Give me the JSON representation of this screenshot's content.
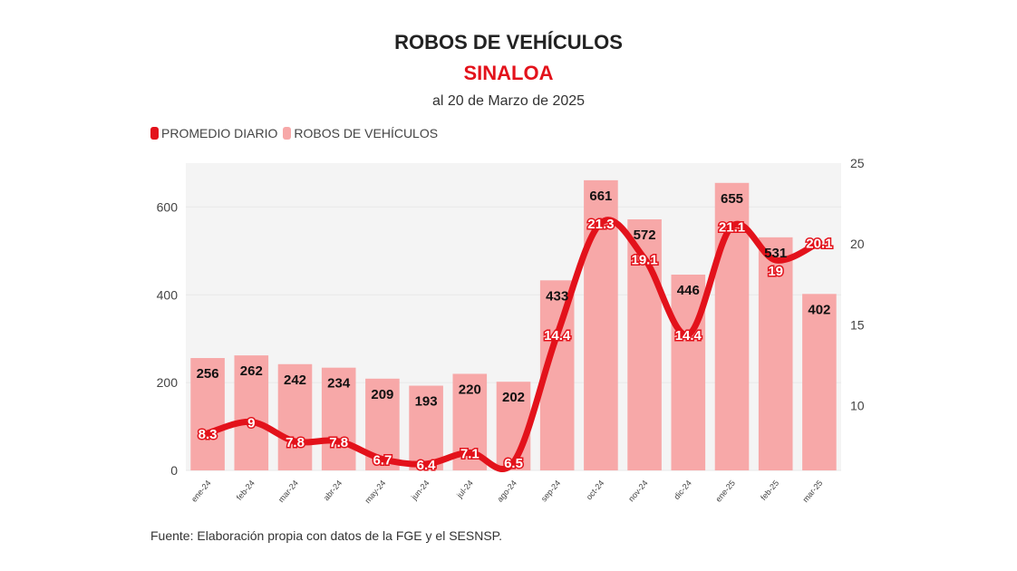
{
  "title": "ROBOS DE VEHÍCULOS",
  "subtitle": "SINALOA",
  "date": "al 20 de Marzo de 2025",
  "source": "Fuente: Elaboración propia con datos de la FGE y el SESNSP.",
  "colors": {
    "line": "#e3121b",
    "bar": "#f7a8a8",
    "plot_bg": "#f4f4f4",
    "subtitle": "#e3121b"
  },
  "chart_data": {
    "type": "bar+line",
    "title": "ROBOS DE VEHÍCULOS",
    "categories": [
      "ene-24",
      "feb-24",
      "mar-24",
      "abr-24",
      "may-24",
      "jun-24",
      "jul-24",
      "ago-24",
      "sep-24",
      "oct-24",
      "nov-24",
      "dic-24",
      "ene-25",
      "feb-25",
      "mar-25"
    ],
    "series": [
      {
        "name": "ROBOS DE VEHÍCULOS",
        "type": "bar",
        "axis": "left",
        "values": [
          256,
          262,
          242,
          234,
          209,
          193,
          220,
          202,
          433,
          661,
          572,
          446,
          655,
          531,
          402
        ]
      },
      {
        "name": "PROMEDIO DIARIO",
        "type": "line",
        "axis": "right",
        "values": [
          8.3,
          9,
          7.8,
          7.8,
          6.7,
          6.4,
          7.1,
          6.5,
          14.4,
          21.3,
          19.1,
          14.4,
          21.1,
          19,
          20.1
        ]
      }
    ],
    "left_axis": {
      "ylim": [
        0,
        700
      ],
      "ticks": [
        0,
        200,
        400,
        600
      ]
    },
    "right_axis": {
      "ylim": [
        6,
        25
      ],
      "ticks": [
        10,
        15,
        20,
        25
      ]
    },
    "legend": "top-left",
    "grid": true
  }
}
